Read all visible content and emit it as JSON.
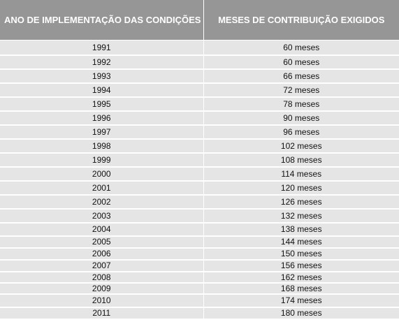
{
  "table": {
    "headers": [
      "ANO DE IMPLEMENTAÇÃO DAS CONDIÇÕES",
      "MESES DE CONTRIBUIÇÃO EXIGIDOS"
    ],
    "rows": [
      [
        "1991",
        "60 meses"
      ],
      [
        "1992",
        "60 meses"
      ],
      [
        "1993",
        "66 meses"
      ],
      [
        "1994",
        "72 meses"
      ],
      [
        "1995",
        "78 meses"
      ],
      [
        "1996",
        "90 meses"
      ],
      [
        "1997",
        "96 meses"
      ],
      [
        "1998",
        "102 meses"
      ],
      [
        "1999",
        "108 meses"
      ],
      [
        "2000",
        "114 meses"
      ],
      [
        "2001",
        "120 meses"
      ],
      [
        "2002",
        "126 meses"
      ],
      [
        "2003",
        "132 meses"
      ],
      [
        "2004",
        "138 meses"
      ],
      [
        "2005",
        "144 meses"
      ],
      [
        "2006",
        "150 meses"
      ],
      [
        "2007",
        "156 meses"
      ],
      [
        "2008",
        "162 meses"
      ],
      [
        "2009",
        "168 meses"
      ],
      [
        "2010",
        "174 meses"
      ],
      [
        "2011",
        "180 meses"
      ]
    ]
  },
  "colors": {
    "header_bg": "#969696",
    "header_text": "#ffffff",
    "row_bg": "#e5e5e5",
    "row_text": "#111111"
  }
}
